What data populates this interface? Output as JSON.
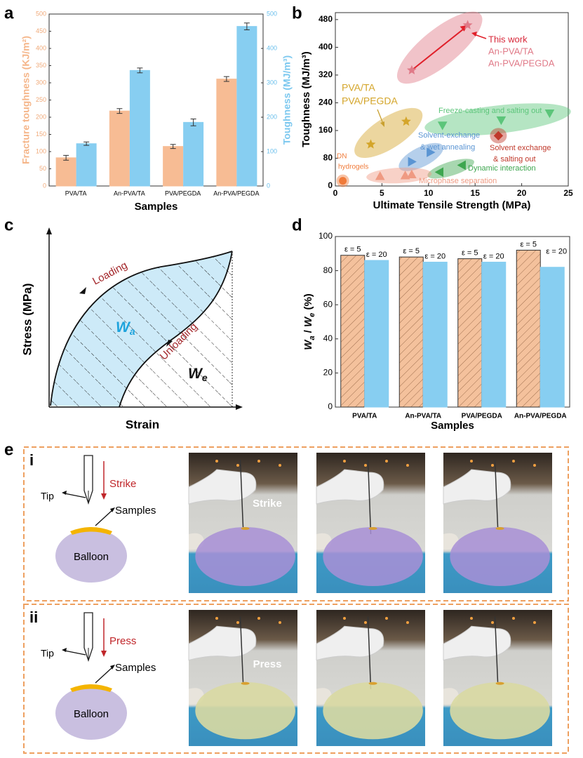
{
  "panel_labels": [
    "a",
    "b",
    "c",
    "d",
    "e"
  ],
  "chart_data": [
    {
      "type": "bar",
      "categories": [
        "PVA/TA",
        "An-PVA/TA",
        "PVA/PEGDA",
        "An-PVA/PEGDA"
      ],
      "xlabel": "Samples",
      "ylabel": "Fracture toughness (KJ/m²)",
      "y2label": "Toughness (MJ/m³)",
      "ylim": [
        0,
        500
      ],
      "yticks": [
        0,
        50,
        100,
        150,
        200,
        250,
        300,
        350,
        400,
        450,
        500
      ],
      "y2lim": [
        0,
        500
      ],
      "y2ticks": [
        0,
        100,
        200,
        300,
        400,
        500
      ],
      "series": [
        {
          "name": "Fracture toughness",
          "color": "#f7bc94",
          "values": [
            82,
            218,
            115,
            311
          ],
          "errors": [
            7,
            7,
            6,
            7
          ]
        },
        {
          "name": "Toughness",
          "color": "#87cef1",
          "axis": "y2",
          "values": [
            123,
            336,
            185,
            464
          ],
          "errors": [
            5,
            7,
            10,
            10
          ]
        }
      ]
    },
    {
      "type": "scatter",
      "xlabel": "Ultimate Tensile Strength (MPa)",
      "ylabel": "Toughness (MJ/m³)",
      "xlim": [
        0,
        25
      ],
      "xticks": [
        0,
        5,
        10,
        15,
        20,
        25
      ],
      "ylim": [
        0,
        500
      ],
      "yticks": [
        0,
        80,
        160,
        240,
        320,
        400,
        480
      ],
      "series": [
        {
          "name_lines": [
            "This work",
            "An-PVA/TA",
            "An-PVA/PEGDA"
          ],
          "color": "#e07a88",
          "marker": "star",
          "x": [
            8.2,
            14.2
          ],
          "y": [
            334,
            464
          ]
        },
        {
          "name_lines": [
            "PVA/TA",
            "PVA/PEGDA"
          ],
          "color": "#d4a52a",
          "marker": "star",
          "x": [
            3.8,
            7.6
          ],
          "y": [
            120,
            186
          ]
        },
        {
          "name_lines": [
            "Freeze-casting and salting out"
          ],
          "color": "#5cc57a",
          "marker": "tri-down",
          "x": [
            11.5,
            17.8,
            23
          ],
          "y": [
            175,
            190,
            210
          ]
        },
        {
          "name_lines": [
            "Solvent-exchange",
            "& wet annealing"
          ],
          "color": "#5b95d3",
          "marker": "tri-right",
          "x": [
            8.2,
            10.2
          ],
          "y": [
            70,
            97
          ]
        },
        {
          "name_lines": [
            "Solvent exchange",
            "& salting out"
          ],
          "color": "#c0392b",
          "marker": "diamond",
          "x": [
            17.5
          ],
          "y": [
            145
          ]
        },
        {
          "name_lines": [
            "Dynamic interaction"
          ],
          "color": "#3ea64f",
          "marker": "tri-left",
          "x": [
            11.2,
            13.6
          ],
          "y": [
            40,
            60
          ]
        },
        {
          "name_lines": [
            "Microphase separation"
          ],
          "color": "#ef9a82",
          "marker": "tri-up",
          "x": [
            4.8,
            7.5,
            8.2
          ],
          "y": [
            28,
            30,
            33
          ]
        },
        {
          "name_lines": [
            "DN",
            "hydrogels"
          ],
          "color": "#f07b3a",
          "marker": "circle",
          "x": [
            0.8
          ],
          "y": [
            15
          ]
        }
      ]
    },
    {
      "type": "bar",
      "categories": [
        "PVA/TA",
        "An-PVA/TA",
        "PVA/PEGDA",
        "An-PVA/PEGDA"
      ],
      "xlabel": "Samples",
      "ylabel_parts": [
        "W",
        "a",
        " / ",
        "W",
        "e",
        " (%)"
      ],
      "ylim": [
        0,
        100
      ],
      "yticks": [
        0,
        20,
        40,
        60,
        80,
        100
      ],
      "series": [
        {
          "name": "ε = 5",
          "color": "#f4c19c",
          "hatch": true,
          "values": [
            89,
            88,
            87,
            92
          ]
        },
        {
          "name": "ε = 20",
          "color": "#87cef1",
          "values": [
            86,
            85,
            85,
            82
          ]
        }
      ]
    }
  ],
  "diagram": {
    "y_label": "Stress (MPa)",
    "x_label": "Strain",
    "loading": "Loading",
    "unloading": "Unloading",
    "w_a": "W",
    "w_a_sub": "a",
    "w_e": "W",
    "w_e_sub": "e"
  },
  "demo": {
    "rows": [
      {
        "label": "i",
        "action": "Strike",
        "tip": "Tip",
        "samples": "Samples",
        "balloon": "Balloon",
        "photo_label": "Strike"
      },
      {
        "label": "ii",
        "action": "Press",
        "tip": "Tip",
        "samples": "Samples",
        "balloon": "Balloon",
        "photo_label": "Press"
      }
    ]
  }
}
